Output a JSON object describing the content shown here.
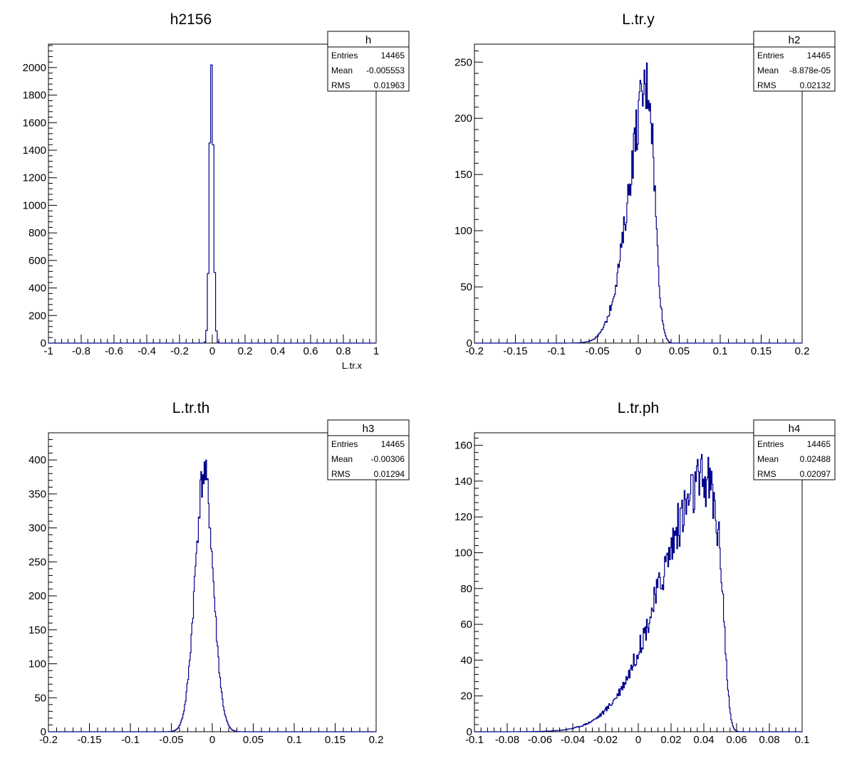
{
  "chart_data": [
    {
      "type": "histogram",
      "title": "h2156",
      "xlabel": "L.tr.x",
      "xlim": [
        -1,
        1
      ],
      "ylim": [
        0,
        2170
      ],
      "x_ticks": [
        "-1",
        "-0.8",
        "-0.6",
        "-0.4",
        "-0.2",
        "0",
        "0.2",
        "0.4",
        "0.6",
        "0.8",
        "1"
      ],
      "x_tick_values": [
        -1,
        -0.8,
        -0.6,
        -0.4,
        -0.2,
        0,
        0.2,
        0.4,
        0.6,
        0.8,
        1
      ],
      "y_ticks": [
        "0",
        "200",
        "400",
        "600",
        "800",
        "1000",
        "1200",
        "1400",
        "1600",
        "1800",
        "2000"
      ],
      "y_tick_values": [
        0,
        200,
        400,
        600,
        800,
        1000,
        1200,
        1400,
        1600,
        1800,
        2000
      ],
      "stats": {
        "name": "h",
        "entries_label": "Entries",
        "entries": "14465",
        "mean_label": "Mean",
        "mean": "-0.005553",
        "rms_label": "RMS",
        "rms": "0.01963"
      },
      "peak": {
        "center": -0.005,
        "height": 2060,
        "sigma": 0.012,
        "bins": 200,
        "noise": 0.02
      },
      "color": "#00008b"
    },
    {
      "type": "histogram",
      "title": "L.tr.y",
      "xlabel": "",
      "xlim": [
        -0.2,
        0.2
      ],
      "ylim": [
        0,
        266
      ],
      "x_ticks": [
        "-0.2",
        "-0.15",
        "-0.1",
        "-0.05",
        "0",
        "0.05",
        "0.1",
        "0.15",
        "0.2"
      ],
      "x_tick_values": [
        -0.2,
        -0.15,
        -0.1,
        -0.05,
        0,
        0.05,
        0.1,
        0.15,
        0.2
      ],
      "y_ticks": [
        "0",
        "50",
        "100",
        "150",
        "200",
        "250"
      ],
      "y_tick_values": [
        0,
        50,
        100,
        150,
        200,
        250
      ],
      "stats": {
        "name": "h2",
        "entries_label": "Entries",
        "entries": "14465",
        "mean_label": "Mean",
        "mean": "-8.878e-05",
        "rms_label": "RMS",
        "rms": "0.02132"
      },
      "peak": {
        "center": 0.012,
        "height": 230,
        "sigma": 0.023,
        "skew": "left",
        "cutoff": 0.036,
        "bins": 400,
        "noise": 0.12
      },
      "color": "#00008b"
    },
    {
      "type": "histogram",
      "title": "L.tr.th",
      "xlabel": "",
      "xlim": [
        -0.2,
        0.2
      ],
      "ylim": [
        0,
        440
      ],
      "x_ticks": [
        "-0.2",
        "-0.15",
        "-0.1",
        "-0.05",
        "0",
        "0.05",
        "0.1",
        "0.15",
        "0.2"
      ],
      "x_tick_values": [
        -0.2,
        -0.15,
        -0.1,
        -0.05,
        0,
        0.05,
        0.1,
        0.15,
        0.2
      ],
      "y_ticks": [
        "0",
        "50",
        "100",
        "150",
        "200",
        "250",
        "300",
        "350",
        "400"
      ],
      "y_tick_values": [
        0,
        50,
        100,
        150,
        200,
        250,
        300,
        350,
        400
      ],
      "stats": {
        "name": "h3",
        "entries_label": "Entries",
        "entries": "14465",
        "mean_label": "Mean",
        "mean": "-0.00306",
        "rms_label": "RMS",
        "rms": "0.01294"
      },
      "peak": {
        "center": -0.01,
        "height": 380,
        "sigma": 0.011,
        "bins": 400,
        "noise": 0.08
      },
      "color": "#00008b"
    },
    {
      "type": "histogram",
      "title": "L.tr.ph",
      "xlabel": "",
      "xlim": [
        -0.1,
        0.1
      ],
      "ylim": [
        0,
        167
      ],
      "x_ticks": [
        "-0.1",
        "-0.08",
        "-0.06",
        "-0.04",
        "-0.02",
        "0",
        "0.02",
        "0.04",
        "0.06",
        "0.08",
        "0.1"
      ],
      "x_tick_values": [
        -0.1,
        -0.08,
        -0.06,
        -0.04,
        -0.02,
        0,
        0.02,
        0.04,
        0.06,
        0.08,
        0.1
      ],
      "y_ticks": [
        "0",
        "20",
        "40",
        "60",
        "80",
        "100",
        "120",
        "140",
        "160"
      ],
      "y_tick_values": [
        0,
        20,
        40,
        60,
        80,
        100,
        120,
        140,
        160
      ],
      "stats": {
        "name": "h4",
        "entries_label": "Entries",
        "entries": "14465",
        "mean_label": "Mean",
        "mean": "0.02488",
        "rms_label": "RMS",
        "rms": "0.02097"
      },
      "peak": {
        "center": 0.042,
        "height": 140,
        "sigma": 0.028,
        "skew": "left",
        "cutoff": 0.05,
        "bins": 400,
        "noise": 0.12
      },
      "color": "#00008b"
    }
  ]
}
